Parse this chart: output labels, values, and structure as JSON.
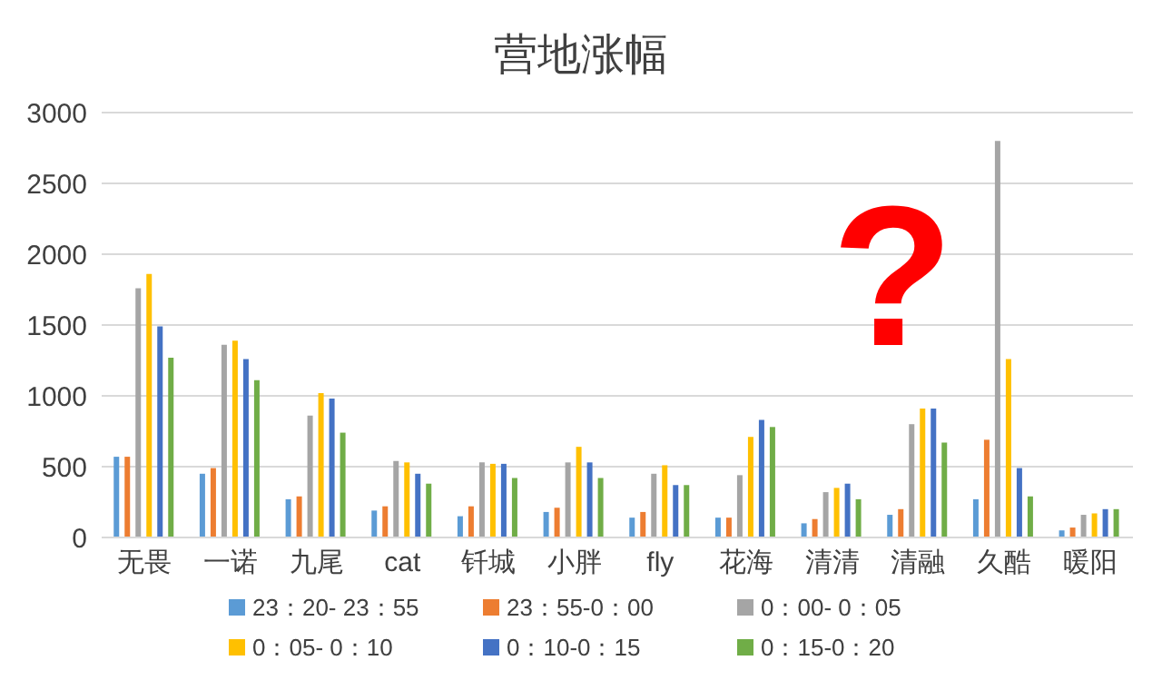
{
  "chart_data": {
    "type": "bar",
    "title": "营地涨幅",
    "categories": [
      "无畏",
      "一诺",
      "九尾",
      "cat",
      "钎城",
      "小胖",
      "fly",
      "花海",
      "清清",
      "清融",
      "久酷",
      "暖阳"
    ],
    "series": [
      {
        "name": "23：20- 23：55",
        "color": "#5b9bd5",
        "values": [
          570,
          450,
          270,
          190,
          150,
          180,
          140,
          140,
          100,
          160,
          270,
          50
        ]
      },
      {
        "name": "23：55-0：00",
        "color": "#ed7d31",
        "values": [
          570,
          490,
          290,
          220,
          220,
          210,
          180,
          140,
          130,
          200,
          690,
          70
        ]
      },
      {
        "name": "0：00- 0：05",
        "color": "#a5a5a5",
        "values": [
          1760,
          1360,
          860,
          540,
          530,
          530,
          450,
          440,
          320,
          800,
          2800,
          160
        ]
      },
      {
        "name": "0：05- 0：10",
        "color": "#ffc000",
        "values": [
          1860,
          1390,
          1020,
          530,
          520,
          640,
          510,
          710,
          350,
          910,
          1260,
          170
        ]
      },
      {
        "name": "0：10-0：15",
        "color": "#4472c4",
        "values": [
          1490,
          1260,
          980,
          450,
          520,
          530,
          370,
          830,
          380,
          910,
          490,
          200
        ]
      },
      {
        "name": "0：15-0：20",
        "color": "#70ad47",
        "values": [
          1270,
          1110,
          740,
          380,
          420,
          420,
          370,
          780,
          270,
          670,
          290,
          200
        ]
      }
    ],
    "annotations": [
      "?"
    ],
    "ylim": [
      0,
      3000
    ],
    "yticks": [
      0,
      500,
      1000,
      1500,
      2000,
      2500,
      3000
    ],
    "grid": "y",
    "legend": "bottom"
  }
}
